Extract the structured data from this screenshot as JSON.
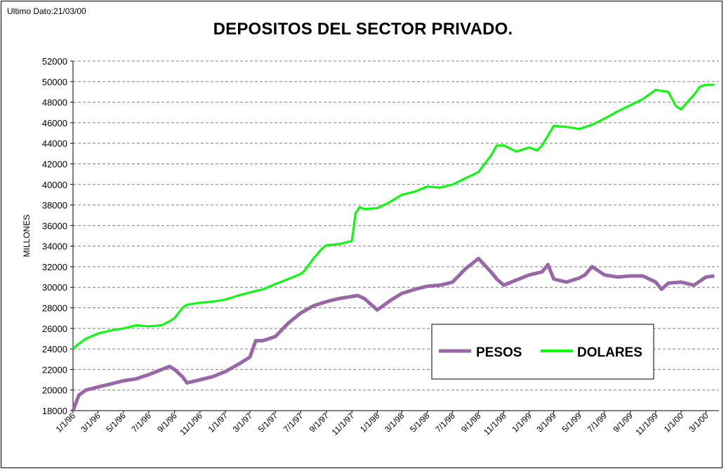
{
  "header": {
    "last_date": "Ultimo Dato:21/03/00"
  },
  "chart_data": {
    "type": "line",
    "title": "DEPOSITOS DEL SECTOR PRIVADO.",
    "ylabel": "MILLONES",
    "xlabel": "",
    "ylim": [
      18000,
      52000
    ],
    "yticks": [
      18000,
      20000,
      22000,
      24000,
      26000,
      28000,
      30000,
      32000,
      34000,
      36000,
      38000,
      40000,
      42000,
      44000,
      46000,
      48000,
      50000,
      52000
    ],
    "xticks": [
      "1/1/96",
      "3/1/96",
      "5/1/96",
      "7/1/96",
      "9/1/96",
      "11/1/96",
      "1/1/97",
      "3/1/97",
      "5/1/97",
      "7/1/97",
      "9/1/97",
      "11/1/97",
      "1/1/98",
      "3/1/98",
      "5/1/98",
      "7/1/98",
      "9/1/98",
      "11/1/98",
      "1/1/99",
      "3/1/99",
      "5/1/99",
      "7/1/99",
      "9/1/99",
      "11/1/99",
      "1/1/00",
      "3/1/00"
    ],
    "grid": "horizontal dashed",
    "legend": "bottom-right",
    "series": [
      {
        "name": "PESOS",
        "color": "#9966a8",
        "x": [
          "1/1/96",
          "1/15/96",
          "2/1/96",
          "3/1/96",
          "4/1/96",
          "5/1/96",
          "6/1/96",
          "7/1/96",
          "8/1/96",
          "8/20/96",
          "9/1/96",
          "9/20/96",
          "10/1/96",
          "11/1/96",
          "12/1/96",
          "1/1/97",
          "2/1/97",
          "3/1/97",
          "3/15/97",
          "4/1/97",
          "5/1/97",
          "6/1/97",
          "7/1/97",
          "8/1/97",
          "9/1/97",
          "10/1/97",
          "11/1/97",
          "11/15/97",
          "12/1/97",
          "1/1/98",
          "2/1/98",
          "3/1/98",
          "4/1/98",
          "5/1/98",
          "6/1/98",
          "7/1/98",
          "8/1/98",
          "8/20/98",
          "9/1/98",
          "10/1/98",
          "10/15/98",
          "11/1/98",
          "12/1/98",
          "1/1/99",
          "2/1/99",
          "2/15/99",
          "3/1/99",
          "4/1/99",
          "5/1/99",
          "5/15/99",
          "6/1/99",
          "7/1/99",
          "8/1/99",
          "9/1/99",
          "10/1/99",
          "11/1/99",
          "11/15/99",
          "12/1/99",
          "1/1/00",
          "2/1/00",
          "3/1/00",
          "3/21/00"
        ],
        "values": [
          18000,
          19500,
          20000,
          20300,
          20600,
          20900,
          21100,
          21500,
          22000,
          22300,
          22000,
          21300,
          20700,
          21000,
          21300,
          21800,
          22500,
          23200,
          24800,
          24800,
          25200,
          26500,
          27500,
          28200,
          28600,
          28900,
          29100,
          29200,
          28900,
          27800,
          28700,
          29400,
          29800,
          30100,
          30200,
          30500,
          31800,
          32400,
          32800,
          31500,
          30800,
          30200,
          30700,
          31200,
          31500,
          32200,
          30800,
          30500,
          30900,
          31200,
          32000,
          31200,
          31000,
          31100,
          31100,
          30500,
          29800,
          30400,
          30500,
          30200,
          31000,
          31100
        ]
      },
      {
        "name": "DOLARES",
        "color": "#00ff00",
        "x": [
          "1/1/96",
          "1/15/96",
          "2/1/96",
          "3/1/96",
          "4/1/96",
          "5/1/96",
          "6/1/96",
          "7/1/96",
          "8/1/96",
          "8/20/96",
          "9/1/96",
          "9/20/96",
          "10/1/96",
          "11/1/96",
          "12/1/96",
          "1/1/97",
          "2/1/97",
          "3/1/97",
          "4/1/97",
          "5/1/97",
          "6/1/97",
          "7/1/97",
          "7/10/97",
          "8/1/97",
          "8/20/97",
          "9/1/97",
          "10/1/97",
          "11/1/97",
          "11/10/97",
          "11/20/97",
          "12/1/97",
          "1/1/98",
          "2/1/98",
          "3/1/98",
          "4/1/98",
          "5/1/98",
          "6/1/98",
          "7/1/98",
          "8/1/98",
          "9/1/98",
          "10/1/98",
          "10/15/98",
          "11/1/98",
          "12/1/98",
          "1/1/99",
          "1/20/99",
          "2/1/99",
          "3/1/99",
          "4/1/99",
          "5/1/99",
          "6/1/99",
          "7/1/99",
          "8/1/99",
          "9/1/99",
          "10/1/99",
          "11/1/99",
          "12/1/99",
          "12/20/99",
          "1/1/00",
          "1/20/00",
          "2/1/00",
          "2/15/00",
          "3/1/00",
          "3/21/00"
        ],
        "values": [
          24000,
          24500,
          25000,
          25500,
          25800,
          26000,
          26300,
          26200,
          26300,
          26700,
          27000,
          28000,
          28300,
          28500,
          28600,
          28800,
          29200,
          29500,
          29800,
          30300,
          30800,
          31300,
          31600,
          32800,
          33700,
          34100,
          34200,
          34500,
          37200,
          37800,
          37600,
          37700,
          38300,
          39000,
          39300,
          39800,
          39700,
          40000,
          40600,
          41200,
          42800,
          43800,
          43800,
          43200,
          43600,
          43300,
          43800,
          45700,
          45600,
          45400,
          45800,
          46400,
          47100,
          47700,
          48300,
          49200,
          49000,
          47600,
          47300,
          48200,
          48700,
          49500,
          49700,
          49700
        ]
      }
    ]
  }
}
